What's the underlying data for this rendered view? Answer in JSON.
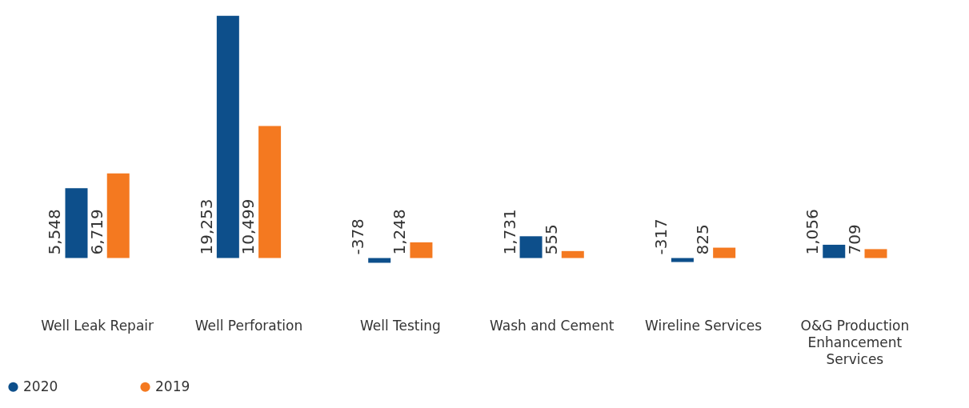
{
  "chart_data": {
    "type": "bar",
    "categories": [
      "Well Leak Repair",
      "Well Perforation",
      "Well Testing",
      "Wash and Cement",
      "Wireline Services",
      "O&G Production Enhancement Services"
    ],
    "series": [
      {
        "name": "2020",
        "color": "#0d4f8b",
        "values": [
          5548,
          19253,
          -378,
          1731,
          -317,
          1056
        ],
        "value_labels": [
          "5,548",
          "19,253",
          "-378",
          "1,731",
          "-317",
          "1,056"
        ]
      },
      {
        "name": "2019",
        "color": "#f47920",
        "values": [
          6719,
          10499,
          1248,
          555,
          825,
          709
        ],
        "value_labels": [
          "6,719",
          "10,499",
          "1,248",
          "555",
          "825",
          "709"
        ]
      }
    ],
    "legend": "bottom left",
    "grid": false
  }
}
